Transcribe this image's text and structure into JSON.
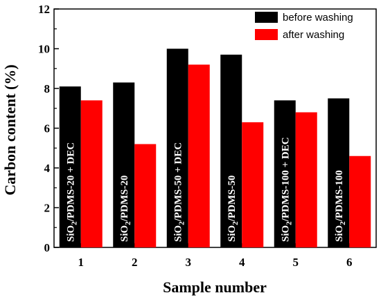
{
  "chart_data": {
    "type": "bar",
    "xlabel": "Sample number",
    "ylabel": "Carbon content (%)",
    "ylim": [
      0,
      12
    ],
    "yticks": [
      0,
      2,
      4,
      6,
      8,
      10,
      12
    ],
    "categories": [
      "1",
      "2",
      "3",
      "4",
      "5",
      "6"
    ],
    "series": [
      {
        "name": "before washing",
        "color": "#000000",
        "values": [
          8.1,
          8.3,
          10.0,
          9.7,
          7.4,
          7.5
        ]
      },
      {
        "name": "after washing",
        "color": "#ff0000",
        "values": [
          7.4,
          5.2,
          9.2,
          6.3,
          6.8,
          4.6
        ]
      }
    ],
    "bar_labels": [
      {
        "base": "SiO",
        "sub": "2",
        "rest": "/PDMS-20 + DEC"
      },
      {
        "base": "SiO",
        "sub": "2",
        "rest": "/PDMS-20"
      },
      {
        "base": "SiO",
        "sub": "2",
        "rest": "/PDMS-50 + DEC"
      },
      {
        "base": "SiO",
        "sub": "2",
        "rest": "/PDMS-50"
      },
      {
        "base": "SiO",
        "sub": "2",
        "rest": "/PDMS-100 + DEC"
      },
      {
        "base": "SiO",
        "sub": "2",
        "rest": "/PDMS-100"
      }
    ],
    "legend": {
      "position": "top-right"
    },
    "grid": false
  }
}
